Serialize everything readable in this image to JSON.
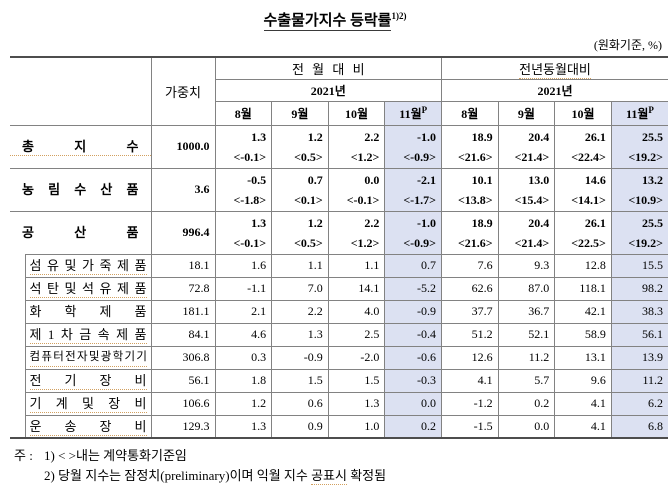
{
  "title": {
    "text": "수출물가지수 등락률",
    "sup": "1)2)"
  },
  "unit_note": "(원화기준, %)",
  "header": {
    "weight": "가중치",
    "groups": [
      {
        "label": "전 월 대 비",
        "year": "2021년"
      },
      {
        "label": "전년동월대비",
        "year": "2021년"
      }
    ],
    "months": [
      "8월",
      "9월",
      "10월",
      "11월"
    ],
    "prelim_sup": "P"
  },
  "rows": [
    {
      "label": "총지수",
      "indent": false,
      "mark": true,
      "weight": "1000.0",
      "values": [
        "1.3",
        "1.2",
        "2.2",
        "-1.0",
        "18.9",
        "20.4",
        "26.1",
        "25.5"
      ],
      "brackets": [
        "<-0.1>",
        "<0.5>",
        "<1.2>",
        "<-0.9>",
        "<21.6>",
        "<21.4>",
        "<22.4>",
        "<19.2>"
      ]
    },
    {
      "label": "농림수산품",
      "indent": false,
      "mark": false,
      "weight": "3.6",
      "values": [
        "-0.5",
        "0.7",
        "0.0",
        "-2.1",
        "10.1",
        "13.0",
        "14.6",
        "13.2"
      ],
      "brackets": [
        "<-1.8>",
        "<0.1>",
        "<-0.1>",
        "<-1.7>",
        "<13.8>",
        "<15.4>",
        "<14.1>",
        "<10.9>"
      ]
    },
    {
      "label": "공산품",
      "indent": false,
      "mark": false,
      "weight": "996.4",
      "values": [
        "1.3",
        "1.2",
        "2.2",
        "-1.0",
        "18.9",
        "20.4",
        "26.1",
        "25.5"
      ],
      "brackets": [
        "<-0.1>",
        "<0.5>",
        "<1.2>",
        "<-0.9>",
        "<21.6>",
        "<21.4>",
        "<22.5>",
        "<19.2>"
      ]
    },
    {
      "label": "섬유및가죽제품",
      "indent": true,
      "mark": true,
      "weight": "18.1",
      "values": [
        "1.6",
        "1.1",
        "1.1",
        "0.7",
        "7.6",
        "9.3",
        "12.8",
        "15.5"
      ]
    },
    {
      "label": "석탄및석유제품",
      "indent": true,
      "mark": true,
      "weight": "72.8",
      "values": [
        "-1.1",
        "7.0",
        "14.1",
        "-5.2",
        "62.6",
        "87.0",
        "118.1",
        "98.2"
      ]
    },
    {
      "label": "화학제품",
      "indent": true,
      "mark": false,
      "weight": "181.1",
      "values": [
        "2.1",
        "2.2",
        "4.0",
        "-0.9",
        "37.7",
        "36.7",
        "42.1",
        "38.3"
      ]
    },
    {
      "label": "제1차금속제품",
      "indent": true,
      "mark": true,
      "weight": "84.1",
      "values": [
        "4.6",
        "1.3",
        "2.5",
        "-0.4",
        "51.2",
        "52.1",
        "58.9",
        "56.1"
      ]
    },
    {
      "label": "컴퓨터전자및광학기기",
      "indent": true,
      "mark": true,
      "weight": "306.8",
      "values": [
        "0.3",
        "-0.9",
        "-2.0",
        "-0.6",
        "12.6",
        "11.2",
        "13.1",
        "13.9"
      ]
    },
    {
      "label": "전기장비",
      "indent": true,
      "mark": true,
      "weight": "56.1",
      "values": [
        "1.8",
        "1.5",
        "1.5",
        "-0.3",
        "4.1",
        "5.7",
        "9.6",
        "11.2"
      ]
    },
    {
      "label": "기계및장비",
      "indent": true,
      "mark": true,
      "weight": "106.6",
      "values": [
        "1.2",
        "0.6",
        "1.3",
        "0.0",
        "-1.2",
        "0.2",
        "4.1",
        "6.2"
      ]
    },
    {
      "label": "운송장비",
      "indent": true,
      "mark": true,
      "weight": "129.3",
      "values": [
        "1.3",
        "0.9",
        "1.0",
        "0.2",
        "-1.5",
        "0.0",
        "4.1",
        "6.8"
      ]
    }
  ],
  "footnotes": {
    "prefix": "주 :",
    "note1": "1) < >내는 계약통화기준임",
    "note2_pre": "2) 당월 지수는 잠정치(preliminary)이며 익월 지수 ",
    "note2_mark": "공표시",
    "note2_post": " 확정됨"
  },
  "colors": {
    "highlight": "#dce1f2",
    "mark_underline": "#d2a05f",
    "line": "#828282",
    "heavy_line": "#4d4d4d"
  }
}
